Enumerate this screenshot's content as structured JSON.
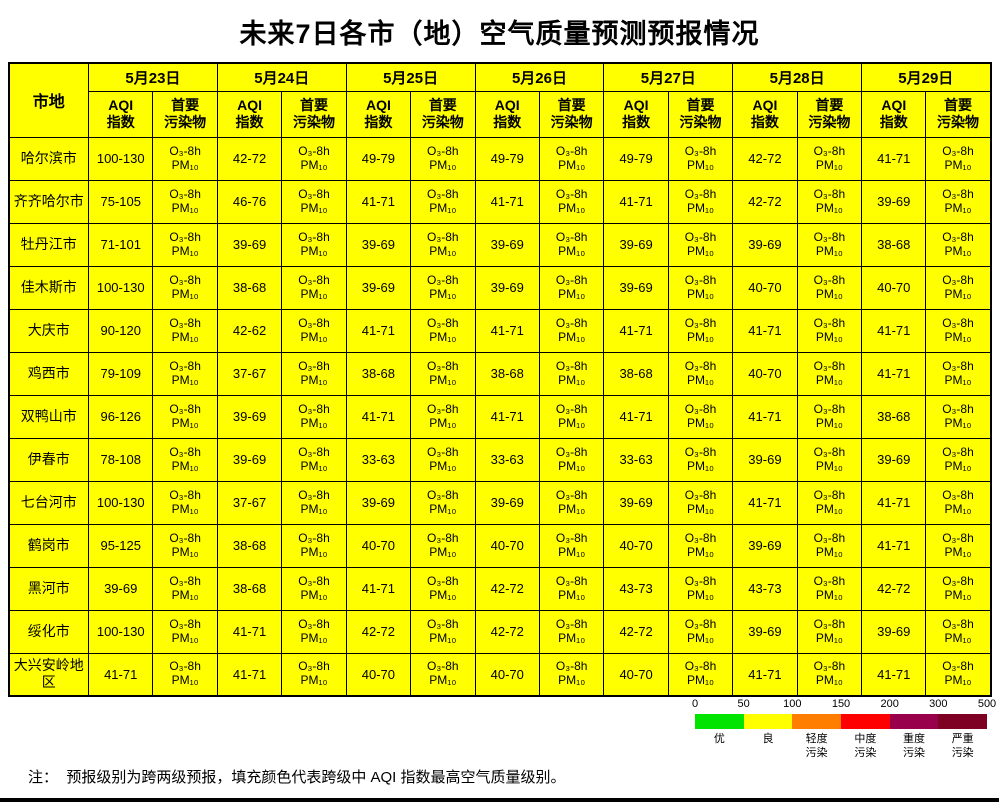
{
  "title": "未来7日各市（地）空气质量预测预报情况",
  "colors": {
    "cell_yellow": "#FFFF00",
    "cell_orange": "#FFC000"
  },
  "table": {
    "city_header": "市地",
    "dates": [
      "5月23日",
      "5月24日",
      "5月25日",
      "5月26日",
      "5月27日",
      "5月28日",
      "5月29日"
    ],
    "aqi_header_line1": "AQI",
    "aqi_header_line2": "指数",
    "pollutant_header_line1": "首要",
    "pollutant_header_line2": "污染物",
    "pollutant_line1": "O₃-8h",
    "pollutant_line2": "PM₁₀",
    "rows": [
      {
        "city": "哈尔滨市",
        "aqi": [
          "100-130",
          "42-72",
          "49-79",
          "49-79",
          "49-79",
          "42-72",
          "41-71"
        ],
        "day1_highlight": true
      },
      {
        "city": "齐齐哈尔市",
        "aqi": [
          "75-105",
          "46-76",
          "41-71",
          "41-71",
          "41-71",
          "42-72",
          "39-69"
        ],
        "day1_highlight": true
      },
      {
        "city": "牡丹江市",
        "aqi": [
          "71-101",
          "39-69",
          "39-69",
          "39-69",
          "39-69",
          "39-69",
          "38-68"
        ],
        "day1_highlight": true
      },
      {
        "city": "佳木斯市",
        "aqi": [
          "100-130",
          "38-68",
          "39-69",
          "39-69",
          "39-69",
          "40-70",
          "40-70"
        ],
        "day1_highlight": true
      },
      {
        "city": "大庆市",
        "aqi": [
          "90-120",
          "42-62",
          "41-71",
          "41-71",
          "41-71",
          "41-71",
          "41-71"
        ],
        "day1_highlight": true
      },
      {
        "city": "鸡西市",
        "aqi": [
          "79-109",
          "37-67",
          "38-68",
          "38-68",
          "38-68",
          "40-70",
          "41-71"
        ],
        "day1_highlight": true
      },
      {
        "city": "双鸭山市",
        "aqi": [
          "96-126",
          "39-69",
          "41-71",
          "41-71",
          "41-71",
          "41-71",
          "38-68"
        ],
        "day1_highlight": true
      },
      {
        "city": "伊春市",
        "aqi": [
          "78-108",
          "39-69",
          "33-63",
          "33-63",
          "33-63",
          "39-69",
          "39-69"
        ],
        "day1_highlight": true
      },
      {
        "city": "七台河市",
        "aqi": [
          "100-130",
          "37-67",
          "39-69",
          "39-69",
          "39-69",
          "41-71",
          "41-71"
        ],
        "day1_highlight": true
      },
      {
        "city": "鹤岗市",
        "aqi": [
          "95-125",
          "38-68",
          "40-70",
          "40-70",
          "40-70",
          "39-69",
          "41-71"
        ],
        "day1_highlight": true
      },
      {
        "city": "黑河市",
        "aqi": [
          "39-69",
          "38-68",
          "41-71",
          "42-72",
          "43-73",
          "43-73",
          "42-72"
        ],
        "day1_highlight": false
      },
      {
        "city": "绥化市",
        "aqi": [
          "100-130",
          "41-71",
          "42-72",
          "42-72",
          "42-72",
          "39-69",
          "39-69"
        ],
        "day1_highlight": true
      },
      {
        "city": "大兴安岭地区",
        "aqi": [
          "41-71",
          "41-71",
          "40-70",
          "40-70",
          "40-70",
          "41-71",
          "41-71"
        ],
        "day1_highlight": false
      }
    ]
  },
  "legend": {
    "ticks": [
      "0",
      "50",
      "100",
      "150",
      "200",
      "300",
      "500"
    ],
    "levels": [
      {
        "label_line1": "优",
        "label_line2": "",
        "color": "#00E400"
      },
      {
        "label_line1": "良",
        "label_line2": "",
        "color": "#FFFF00"
      },
      {
        "label_line1": "轻度",
        "label_line2": "污染",
        "color": "#FF7E00"
      },
      {
        "label_line1": "中度",
        "label_line2": "污染",
        "color": "#FF0000"
      },
      {
        "label_line1": "重度",
        "label_line2": "污染",
        "color": "#99004C"
      },
      {
        "label_line1": "严重",
        "label_line2": "污染",
        "color": "#7E0023"
      }
    ]
  },
  "note": "注：  预报级别为跨两级预报，填充颜色代表跨级中 AQI 指数最高空气质量级别。"
}
